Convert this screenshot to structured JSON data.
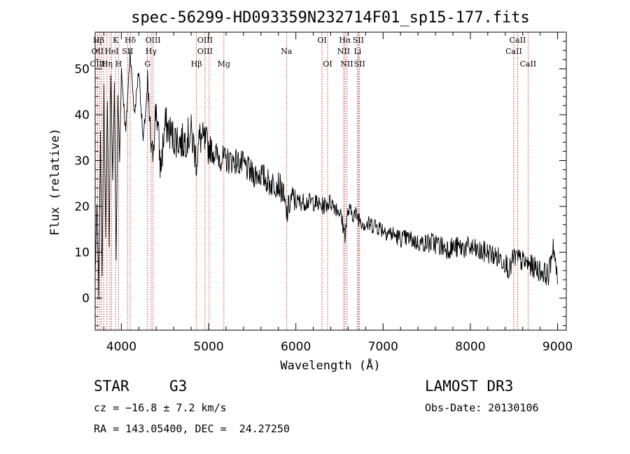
{
  "chart_data": {
    "type": "line",
    "title": "spec-56299-HD093359N232714F01_sp15-177.fits",
    "xlabel": "Wavelength (Å)",
    "ylabel": "Flux (relative)",
    "xlim": [
      3700,
      9100
    ],
    "ylim": [
      -7,
      58
    ],
    "x_ticks": [
      4000,
      5000,
      6000,
      7000,
      8000,
      9000
    ],
    "y_ticks": [
      0,
      10,
      20,
      30,
      40,
      50
    ],
    "grid": false,
    "series": [
      {
        "x": [
          3700,
          3720,
          3740,
          3760,
          3780,
          3800,
          3820,
          3840,
          3860,
          3880,
          3900,
          3920,
          3940,
          3960,
          3980,
          4000,
          4050,
          4100,
          4150,
          4200,
          4250,
          4300,
          4350,
          4400,
          4450,
          4500,
          4600,
          4700,
          4800,
          4861,
          4900,
          5000,
          5100,
          5200,
          5300,
          5400,
          5500,
          5600,
          5700,
          5800,
          5850,
          5893,
          5950,
          6000,
          6100,
          6200,
          6300,
          6400,
          6500,
          6563,
          6600,
          6700,
          6800,
          6900,
          7000,
          7100,
          7200,
          7300,
          7400,
          7500,
          7600,
          7700,
          7800,
          7900,
          8000,
          8100,
          8200,
          8300,
          8400,
          8450,
          8500,
          8600,
          8700,
          8800,
          8900,
          8950,
          9000
        ],
        "y": [
          5,
          20,
          1,
          35,
          6,
          46,
          14,
          44,
          10,
          50,
          26,
          46,
          8,
          44,
          30,
          50,
          36,
          54,
          40,
          50,
          34,
          46,
          30,
          42,
          28,
          38,
          35,
          34,
          36,
          30,
          35,
          33,
          31,
          30,
          30,
          29,
          27,
          27,
          25,
          25,
          23,
          18,
          22,
          21,
          21,
          21,
          20,
          21,
          19,
          14,
          19,
          18,
          16,
          16,
          15,
          14,
          13,
          13,
          12,
          12,
          12,
          11,
          11,
          11,
          11,
          10,
          10,
          9,
          8,
          6,
          9,
          8,
          7,
          6,
          5,
          12,
          3
        ]
      }
    ],
    "spectral_lines": [
      {
        "label": "Hβ",
        "wl": 3740,
        "row": 0
      },
      {
        "label": "K",
        "wl": 3934,
        "row": 0
      },
      {
        "label": "Hδ",
        "wl": 4102,
        "row": 0
      },
      {
        "label": "OIII",
        "wl": 4363,
        "row": 0
      },
      {
        "label": "OIII",
        "wl": 4959,
        "row": 0
      },
      {
        "label": "OI",
        "wl": 6300,
        "row": 0
      },
      {
        "label": "Hα",
        "wl": 6563,
        "row": 0
      },
      {
        "label": "SII",
        "wl": 6717,
        "row": 0
      },
      {
        "label": "CaII",
        "wl": 8542,
        "row": 0
      },
      {
        "label": "OII",
        "wl": 3727,
        "row": 1
      },
      {
        "label": "HeI",
        "wl": 3889,
        "row": 1
      },
      {
        "label": "SII",
        "wl": 4072,
        "row": 1
      },
      {
        "label": "Hγ",
        "wl": 4341,
        "row": 1
      },
      {
        "label": "OIII",
        "wl": 4959,
        "row": 1
      },
      {
        "label": "Na",
        "wl": 5893,
        "row": 1
      },
      {
        "label": "NII",
        "wl": 6548,
        "row": 1
      },
      {
        "label": "Li",
        "wl": 6708,
        "row": 1
      },
      {
        "label": "CaII",
        "wl": 8498,
        "row": 1
      },
      {
        "label": "OIII",
        "wl": 3727,
        "row": 2
      },
      {
        "label": "Hη",
        "wl": 3835,
        "row": 2
      },
      {
        "label": "H",
        "wl": 3968,
        "row": 2
      },
      {
        "label": "G",
        "wl": 4300,
        "row": 2
      },
      {
        "label": "Hβ",
        "wl": 4861,
        "row": 2
      },
      {
        "label": "Mg",
        "wl": 5175,
        "row": 2
      },
      {
        "label": "OI",
        "wl": 6364,
        "row": 2
      },
      {
        "label": "NII",
        "wl": 6584,
        "row": 2
      },
      {
        "label": "SII",
        "wl": 6731,
        "row": 2
      },
      {
        "label": "CaII",
        "wl": 8662,
        "row": 2
      }
    ],
    "line_marks": [
      3727,
      3750,
      3770,
      3798,
      3835,
      3869,
      3889,
      3934,
      3968,
      4072,
      4102,
      4300,
      4341,
      4363,
      4861,
      4959,
      5007,
      5175,
      5893,
      6300,
      6364,
      6548,
      6563,
      6584,
      6708,
      6717,
      6731,
      8498,
      8542,
      8662
    ]
  },
  "info": {
    "class_label": "STAR",
    "subclass": "G3",
    "survey": "LAMOST DR3",
    "cz": "cz = −16.8 ± 7.2 km/s",
    "obs_date": "Obs-Date: 20130106",
    "coords": "RA = 143.05400, DEC =  24.27250"
  },
  "colors": {
    "spectrum": "#000000",
    "line_marker": "#b22222",
    "background": "#ffffff"
  }
}
